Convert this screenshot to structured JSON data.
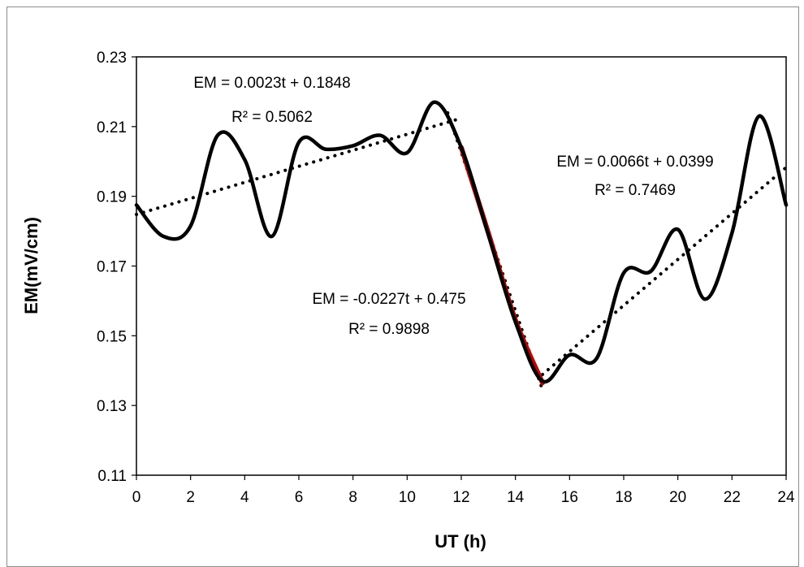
{
  "chart_data": {
    "type": "line",
    "xlabel": "UT (h)",
    "ylabel": "EM(mV/cm)",
    "xlim": [
      0,
      24
    ],
    "ylim": [
      0.11,
      0.23
    ],
    "x_ticks": [
      0,
      2,
      4,
      6,
      8,
      10,
      12,
      14,
      16,
      18,
      20,
      22,
      24
    ],
    "y_ticks": [
      "0.11",
      "0.13",
      "0.15",
      "0.17",
      "0.19",
      "0.21",
      "0.23"
    ],
    "grid": false,
    "legend": "none",
    "series": [
      {
        "color": "#000000",
        "style": "solid-smooth",
        "x": [
          0,
          1,
          2,
          3,
          4,
          5,
          6,
          7,
          8,
          9,
          10,
          11,
          12,
          13,
          14,
          15,
          16,
          17,
          18,
          19,
          20,
          21,
          22,
          23,
          24
        ],
        "y": [
          0.1875,
          0.1785,
          0.1815,
          0.2075,
          0.2005,
          0.1785,
          0.2055,
          0.2035,
          0.2045,
          0.2075,
          0.2025,
          0.217,
          0.204,
          0.179,
          0.154,
          0.137,
          0.1445,
          0.1435,
          0.168,
          0.1685,
          0.1805,
          0.1605,
          0.1795,
          0.213,
          0.1875
        ]
      },
      {
        "color": "#c00000",
        "style": "solid-smooth",
        "x": [
          12,
          13,
          14,
          15
        ],
        "y": [
          0.204,
          0.1795,
          0.1545,
          0.1365
        ]
      }
    ],
    "trendlines": [
      {
        "x": [
          0,
          12
        ],
        "slope": 0.0023,
        "intercept": 0.1848,
        "color": "#000000",
        "style": "dotted"
      },
      {
        "x": [
          11.5,
          15
        ],
        "slope": -0.0227,
        "intercept": 0.475,
        "color": "#000000",
        "style": "dotted"
      },
      {
        "x": [
          15,
          24
        ],
        "slope": 0.0066,
        "intercept": 0.0399,
        "color": "#000000",
        "style": "dotted"
      }
    ],
    "annotations": [
      {
        "line1": "EM = 0.0023t + 0.1848",
        "line2": "R² = 0.5062"
      },
      {
        "line1": "EM = 0.0066t + 0.0399",
        "line2": "R² = 0.7469"
      },
      {
        "line1": "EM = -0.0227t + 0.475",
        "line2": "R² = 0.9898"
      }
    ]
  }
}
